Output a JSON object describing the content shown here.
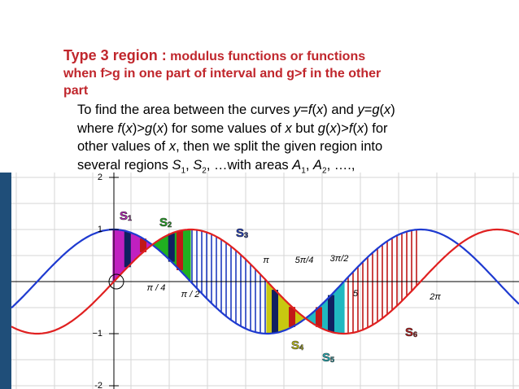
{
  "title": {
    "lead": "Type 3 region :",
    "lines": [
      "modulus functions or functions",
      "when f>g in one part of interval and g>f in the other",
      "part"
    ]
  },
  "body": [
    [
      {
        "t": "To find the area between the curves "
      },
      {
        "t": "y",
        "i": true
      },
      {
        "t": "="
      },
      {
        "t": "f",
        "i": true
      },
      {
        "t": "("
      },
      {
        "t": "x",
        "i": true
      },
      {
        "t": ") and "
      },
      {
        "t": "y",
        "i": true
      },
      {
        "t": "="
      },
      {
        "t": "g",
        "i": true
      },
      {
        "t": "("
      },
      {
        "t": "x",
        "i": true
      },
      {
        "t": ")"
      }
    ],
    [
      {
        "t": "where "
      },
      {
        "t": "f",
        "i": true
      },
      {
        "t": "("
      },
      {
        "t": "x",
        "i": true
      },
      {
        "t": ")>"
      },
      {
        "t": "g",
        "i": true
      },
      {
        "t": "("
      },
      {
        "t": "x",
        "i": true
      },
      {
        "t": ") for some values of "
      },
      {
        "t": "x",
        "i": true
      },
      {
        "t": " but "
      },
      {
        "t": "g",
        "i": true
      },
      {
        "t": "("
      },
      {
        "t": "x",
        "i": true
      },
      {
        "t": ")>"
      },
      {
        "t": "f",
        "i": true
      },
      {
        "t": "("
      },
      {
        "t": "x",
        "i": true
      },
      {
        "t": ") for"
      }
    ],
    [
      {
        "t": "other values of "
      },
      {
        "t": "x",
        "i": true
      },
      {
        "t": ", then we split the given region into"
      }
    ],
    [
      {
        "t": "several regions "
      },
      {
        "t": "S",
        "i": true
      },
      {
        "t": "1",
        "sub": true
      },
      {
        "t": ", "
      },
      {
        "t": "S",
        "i": true
      },
      {
        "t": "2",
        "sub": true
      },
      {
        "t": ", …with areas "
      },
      {
        "t": "A",
        "i": true
      },
      {
        "t": "1",
        "sub": true
      },
      {
        "t": ", "
      },
      {
        "t": "A",
        "i": true
      },
      {
        "t": "2",
        "sub": true
      },
      {
        "t": ", ….,"
      }
    ]
  ],
  "graph": {
    "y_labels": [
      "2",
      "1",
      "−1",
      "-2"
    ],
    "x_labels": [
      "π / 4",
      "π / 2",
      "π",
      "5π/4",
      "3π/2",
      "5",
      "2π"
    ],
    "regions": [
      {
        "s": "S",
        "n": "1"
      },
      {
        "s": "S",
        "n": "2"
      },
      {
        "s": "S",
        "n": "3"
      },
      {
        "s": "S",
        "n": "4"
      },
      {
        "s": "S",
        "n": "5"
      },
      {
        "s": "S",
        "n": "6"
      }
    ]
  }
}
